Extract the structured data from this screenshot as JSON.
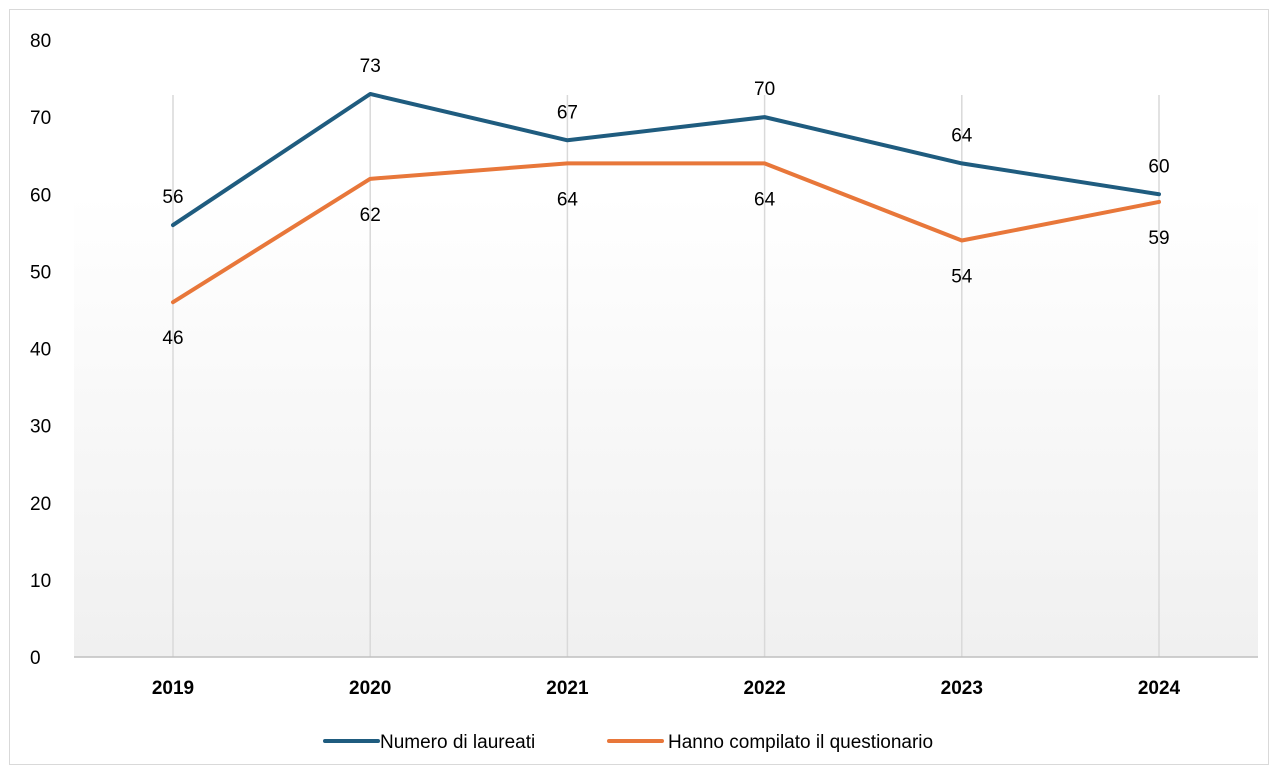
{
  "chart_data": {
    "type": "line",
    "categories": [
      "2019",
      "2020",
      "2021",
      "2022",
      "2023",
      "2024"
    ],
    "series": [
      {
        "name": "Numero di laureati",
        "values": [
          56,
          73,
          67,
          70,
          64,
          60
        ],
        "color": "#1f5c7f",
        "label_position": "above"
      },
      {
        "name": "Hanno compilato il questionario",
        "values": [
          46,
          62,
          64,
          64,
          54,
          59
        ],
        "color": "#e8773a",
        "label_position": "below"
      }
    ],
    "y_ticks": [
      "0",
      "10",
      "20",
      "30",
      "40",
      "50",
      "60",
      "70",
      "80"
    ],
    "ylim": [
      0,
      80
    ],
    "title": "",
    "xlabel": "",
    "ylabel": "",
    "grid": "vertical",
    "legend": "bottom",
    "background": "gradient white to light gray"
  }
}
